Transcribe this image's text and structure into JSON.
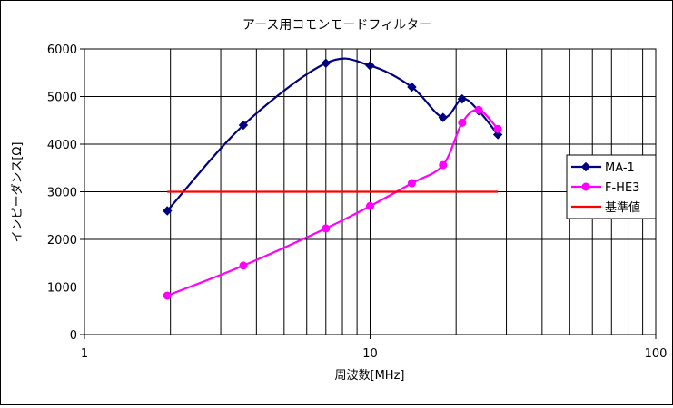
{
  "chart_data": {
    "type": "line",
    "title": "アース用コモンモードフィルター",
    "xlabel": "周波数[MHz]",
    "ylabel": "インピーダンス[Ω]",
    "x_scale": "log",
    "xlim": [
      1,
      100
    ],
    "ylim": [
      0,
      6000
    ],
    "x_ticks": [
      "1",
      "10",
      "100"
    ],
    "y_ticks": [
      "0",
      "1000",
      "2000",
      "3000",
      "4000",
      "5000",
      "6000"
    ],
    "grid": true,
    "legend_position": "right",
    "series": [
      {
        "name": "MA-1",
        "color": "#000080",
        "marker": "diamond",
        "smooth": true,
        "points": [
          [
            1.95,
            2600
          ],
          [
            3.6,
            4400
          ],
          [
            7.0,
            5700
          ],
          [
            10.0,
            5650
          ],
          [
            14.0,
            5200
          ],
          [
            18.0,
            4560
          ],
          [
            21.0,
            4950
          ],
          [
            24.0,
            4700
          ],
          [
            28.0,
            4200
          ]
        ]
      },
      {
        "name": "F-HE3",
        "color": "#ff00ff",
        "marker": "circle",
        "smooth": true,
        "points": [
          [
            1.95,
            820
          ],
          [
            3.6,
            1450
          ],
          [
            7.0,
            2230
          ],
          [
            10.0,
            2700
          ],
          [
            14.0,
            3180
          ],
          [
            18.0,
            3560
          ],
          [
            21.0,
            4450
          ],
          [
            24.0,
            4720
          ],
          [
            28.0,
            4320
          ]
        ]
      },
      {
        "name": "基準値",
        "color": "#ff0000",
        "marker": "none",
        "smooth": false,
        "points": [
          [
            1.95,
            3000
          ],
          [
            28.0,
            3000
          ]
        ]
      }
    ]
  }
}
